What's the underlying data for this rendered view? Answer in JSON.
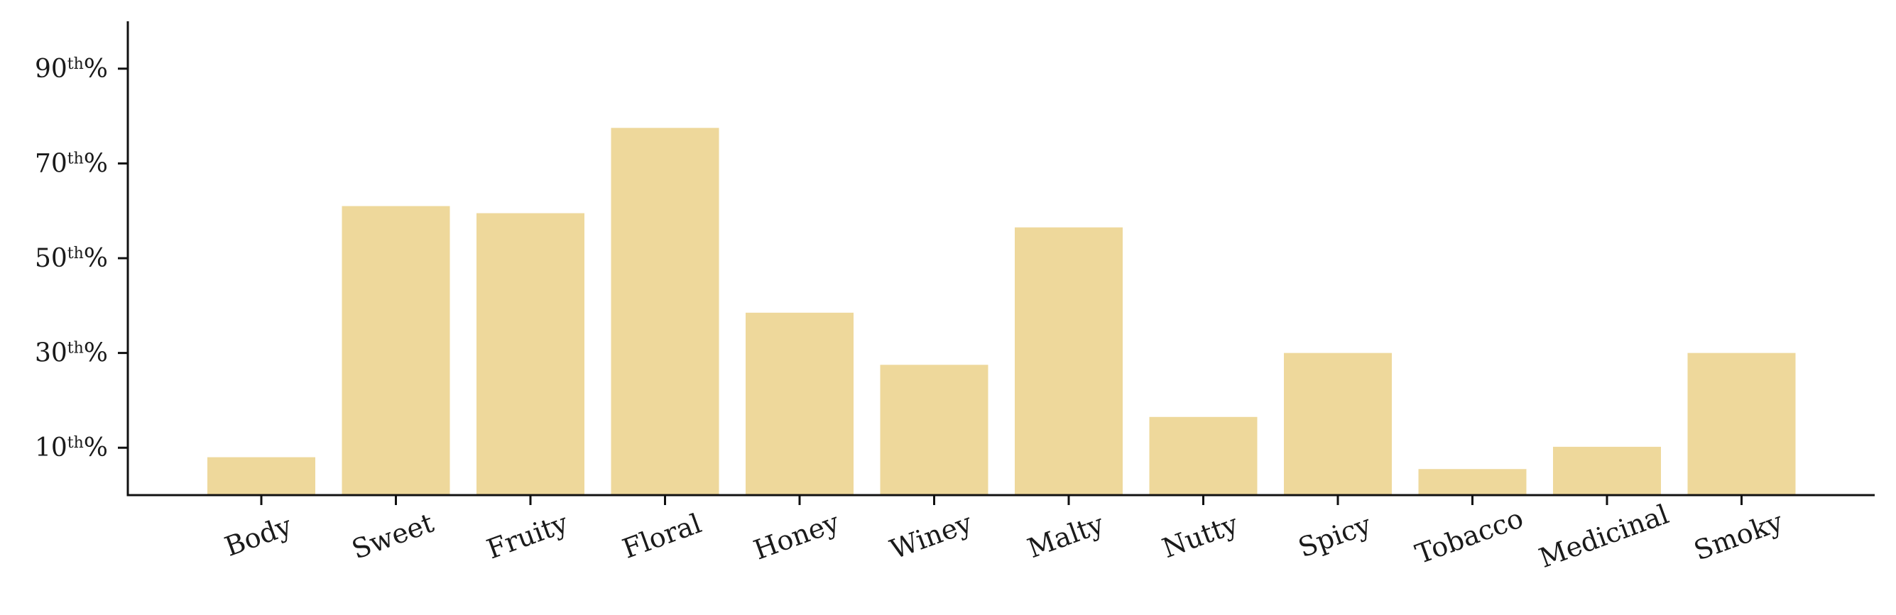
{
  "chart_data": {
    "type": "bar",
    "title": "",
    "xlabel": "",
    "ylabel": "",
    "categories": [
      "Body",
      "Sweet",
      "Fruity",
      "Floral",
      "Honey",
      "Winey",
      "Malty",
      "Nutty",
      "Spicy",
      "Tobacco",
      "Medicinal",
      "Smoky"
    ],
    "values": [
      8,
      61,
      59.5,
      77.5,
      38.5,
      27.5,
      56.5,
      16.5,
      30,
      5.5,
      10.2,
      30
    ],
    "ylim": [
      0,
      100
    ],
    "yticks": [
      {
        "value": 10,
        "num": "10",
        "sup": "th",
        "suffix": "%"
      },
      {
        "value": 30,
        "num": "30",
        "sup": "th",
        "suffix": "%"
      },
      {
        "value": 50,
        "num": "50",
        "sup": "th",
        "suffix": "%"
      },
      {
        "value": 70,
        "num": "70",
        "sup": "th",
        "suffix": "%"
      },
      {
        "value": 90,
        "num": "90",
        "sup": "th",
        "suffix": "%"
      }
    ],
    "bar_color": "#eed89b",
    "grid": false,
    "legend": "none",
    "xtick_rotation": -20
  }
}
